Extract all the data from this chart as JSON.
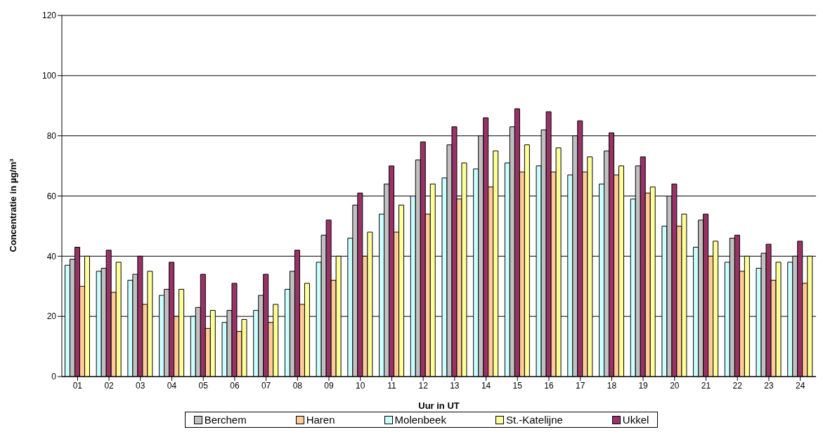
{
  "chart_data": {
    "type": "bar",
    "xlabel": "Uur in UT",
    "ylabel": "Concentratie in µg/m³",
    "categories": [
      "01",
      "02",
      "03",
      "04",
      "05",
      "06",
      "07",
      "08",
      "09",
      "10",
      "11",
      "12",
      "13",
      "14",
      "15",
      "16",
      "17",
      "18",
      "19",
      "20",
      "21",
      "22",
      "23",
      "24"
    ],
    "series": [
      {
        "name": "Molenbeek",
        "color": "#ccffff",
        "values": [
          37,
          35,
          32,
          27,
          20,
          18,
          22,
          29,
          38,
          46,
          54,
          60,
          66,
          69,
          71,
          70,
          67,
          64,
          59,
          50,
          43,
          38,
          36,
          38
        ]
      },
      {
        "name": "Berchem",
        "color": "#c0c0c0",
        "values": [
          39,
          36,
          34,
          29,
          23,
          22,
          27,
          35,
          47,
          57,
          64,
          72,
          77,
          80,
          83,
          82,
          80,
          75,
          70,
          60,
          52,
          46,
          41,
          40
        ]
      },
      {
        "name": "Ukkel",
        "color": "#993366",
        "values": [
          43,
          42,
          40,
          38,
          34,
          31,
          34,
          42,
          52,
          61,
          70,
          78,
          83,
          86,
          89,
          88,
          85,
          81,
          73,
          64,
          54,
          47,
          44,
          45
        ]
      },
      {
        "name": "Haren",
        "color": "#ffcc99",
        "values": [
          30,
          28,
          24,
          20,
          16,
          15,
          18,
          24,
          32,
          40,
          48,
          54,
          59,
          63,
          68,
          68,
          68,
          67,
          61,
          50,
          40,
          35,
          32,
          31
        ]
      },
      {
        "name": "St.-Katelijne",
        "color": "#ffff99",
        "values": [
          40,
          38,
          35,
          29,
          22,
          19,
          24,
          31,
          40,
          48,
          57,
          64,
          71,
          75,
          77,
          76,
          73,
          70,
          63,
          54,
          45,
          40,
          38,
          40
        ]
      }
    ],
    "ylim": [
      0,
      120
    ],
    "yticks": [
      0,
      20,
      40,
      60,
      80,
      100,
      120
    ],
    "grid": "y",
    "legend": "bottom"
  }
}
